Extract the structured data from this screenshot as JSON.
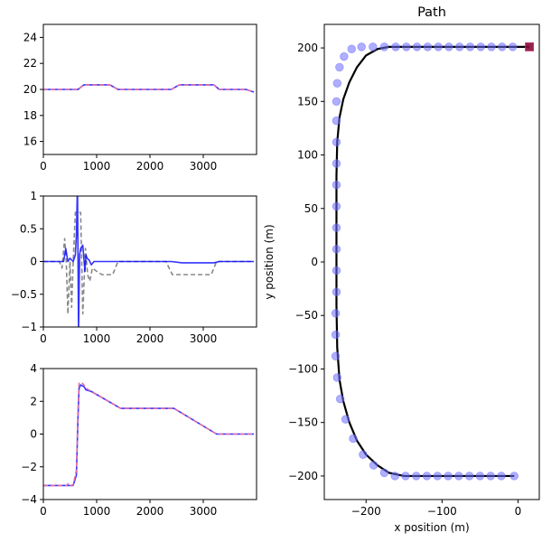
{
  "chart_data": [
    {
      "type": "line",
      "title": "",
      "xlabel": "",
      "ylabel": "",
      "xlim": [
        0,
        4000
      ],
      "ylim": [
        15,
        25
      ],
      "xticks": [
        0,
        1000,
        2000,
        3000
      ],
      "yticks": [
        16,
        18,
        20,
        22,
        24
      ],
      "series": [
        {
          "style": "solid",
          "color": "#0000ff",
          "x": [
            0,
            650,
            760,
            1250,
            1400,
            1850,
            2000,
            2400,
            2550,
            3200,
            3300,
            3800,
            3950
          ],
          "y": [
            20.0,
            20.0,
            20.35,
            20.35,
            20.0,
            20.0,
            20.0,
            20.0,
            20.35,
            20.35,
            20.0,
            20.0,
            19.8
          ]
        },
        {
          "style": "dashed",
          "color": "#e06eaa",
          "x": [
            0,
            650,
            760,
            1250,
            1400,
            1850,
            2000,
            2400,
            2550,
            3200,
            3300,
            3800,
            3950
          ],
          "y": [
            20.0,
            20.0,
            20.35,
            20.35,
            20.0,
            20.0,
            20.0,
            20.0,
            20.35,
            20.35,
            20.0,
            20.0,
            19.8
          ]
        }
      ]
    },
    {
      "type": "line",
      "title": "",
      "xlabel": "",
      "ylabel": "",
      "xlim": [
        0,
        4000
      ],
      "ylim": [
        -1.0,
        1.0
      ],
      "xticks": [
        0,
        1000,
        2000,
        3000
      ],
      "yticks": [
        -1.0,
        -0.5,
        0.0,
        0.5,
        1.0
      ],
      "series": [
        {
          "style": "dashed",
          "color": "#888888",
          "x": [
            0,
            300,
            350,
            400,
            430,
            460,
            500,
            530,
            560,
            600,
            640,
            700,
            740,
            790,
            830,
            870,
            920,
            1000,
            1100,
            1300,
            1400,
            1450,
            1850,
            2000,
            2300,
            2420,
            2550,
            2650,
            3150,
            3250,
            3350,
            3950
          ],
          "y": [
            0.0,
            0.0,
            -0.1,
            0.35,
            0.0,
            -0.8,
            0.0,
            -0.7,
            0.0,
            0.75,
            0.75,
            0.75,
            -0.8,
            0.2,
            -0.2,
            -0.3,
            -0.1,
            -0.15,
            -0.2,
            -0.2,
            0.0,
            0.0,
            0.0,
            0.0,
            0.0,
            -0.2,
            -0.2,
            -0.2,
            -0.2,
            0.0,
            0.0,
            0.0
          ]
        },
        {
          "style": "solid",
          "color": "#0000ff",
          "x": [
            0,
            380,
            420,
            460,
            500,
            560,
            600,
            620,
            640,
            660,
            680,
            700,
            740,
            780,
            800,
            820,
            860,
            900,
            950,
            1000,
            1100,
            1400,
            1950,
            2400,
            2600,
            3200,
            3300,
            3950
          ],
          "y": [
            0.0,
            0.0,
            0.2,
            0.0,
            0.05,
            0.0,
            0.1,
            0.4,
            1.2,
            -1.1,
            0.1,
            0.2,
            0.25,
            -0.15,
            0.1,
            0.05,
            0.02,
            -0.05,
            0.0,
            0.0,
            0.0,
            0.0,
            0.0,
            0.0,
            -0.02,
            -0.02,
            0.0,
            0.0
          ]
        }
      ]
    },
    {
      "type": "line",
      "title": "",
      "xlabel": "",
      "ylabel": "",
      "xlim": [
        0,
        4000
      ],
      "ylim": [
        -4,
        4
      ],
      "xticks": [
        0,
        1000,
        2000,
        3000
      ],
      "yticks": [
        -4,
        -2,
        0,
        2,
        4
      ],
      "series": [
        {
          "style": "solid",
          "color": "#0000ff",
          "x": [
            0,
            560,
            620,
            650,
            670,
            700,
            760,
            800,
            900,
            1450,
            2000,
            2450,
            3250,
            3950
          ],
          "y": [
            -3.14,
            -3.14,
            -2.5,
            1.0,
            2.8,
            3.0,
            2.9,
            2.7,
            2.6,
            1.57,
            1.57,
            1.57,
            0.0,
            0.0
          ]
        },
        {
          "style": "dashed",
          "color": "#e06eaa",
          "x": [
            0,
            440,
            470,
            510,
            560,
            620,
            650,
            670,
            720,
            760,
            800,
            900,
            1450,
            2000,
            2450,
            3250,
            3950
          ],
          "y": [
            -3.14,
            -3.14,
            -3.0,
            -3.14,
            -3.1,
            -2.2,
            1.5,
            3.1,
            3.15,
            3.0,
            2.8,
            2.6,
            1.57,
            1.57,
            1.57,
            0.0,
            0.0
          ]
        }
      ]
    },
    {
      "type": "line",
      "title": "Path",
      "xlabel": "x position (m)",
      "ylabel": "y position (m)",
      "xlim": [
        -255,
        28
      ],
      "ylim": [
        -222,
        222
      ],
      "xticks": [
        -200,
        -100,
        0
      ],
      "yticks": [
        -200,
        -150,
        -100,
        -50,
        0,
        50,
        100,
        150,
        200
      ],
      "path": {
        "color": "#000000",
        "x": [
          -5,
          -40,
          -80,
          -120,
          -150,
          -170,
          -185,
          -200,
          -212,
          -222,
          -230,
          -235,
          -238,
          -239,
          -239,
          -239,
          -239,
          -238,
          -235,
          -230,
          -222,
          -212,
          -200,
          -185,
          -170,
          -150,
          -120,
          -80,
          -40,
          15
        ],
        "y": [
          -200,
          -200,
          -200,
          -200,
          -200,
          -197,
          -190,
          -180,
          -167,
          -150,
          -130,
          -110,
          -80,
          -40,
          0,
          40,
          80,
          112,
          135,
          152,
          168,
          182,
          193,
          199,
          201,
          201,
          201,
          201,
          201,
          201
        ]
      },
      "markers": {
        "color": "#6d6dff",
        "x": [
          -5,
          -22,
          -36,
          -50,
          -64,
          -78,
          -92,
          -106,
          -120,
          -134,
          -148,
          -162,
          -176,
          -190,
          -204,
          -217,
          -227,
          -234,
          -238,
          -240,
          -240,
          -240,
          -239,
          -239,
          -239,
          -239,
          -239,
          -239,
          -239,
          -239,
          -239,
          -239,
          -238,
          -235,
          -229,
          -219,
          -206,
          -191,
          -176,
          -161,
          -147,
          -133,
          -119,
          -105,
          -91,
          -77,
          -63,
          -49,
          -35,
          -21,
          -7
        ],
        "y": [
          -200,
          -200,
          -200,
          -200,
          -200,
          -200,
          -200,
          -200,
          -200,
          -200,
          -200,
          -200,
          -197,
          -190,
          -180,
          -165,
          -147,
          -128,
          -108,
          -88,
          -68,
          -48,
          -28,
          -8,
          12,
          32,
          52,
          72,
          92,
          112,
          132,
          150,
          167,
          182,
          192,
          199,
          201,
          201,
          201,
          201,
          201,
          201,
          201,
          201,
          201,
          201,
          201,
          201,
          201,
          201,
          201
        ]
      },
      "end_marker": {
        "x": 15,
        "y": 201,
        "color": "#8b0a3a"
      }
    }
  ]
}
